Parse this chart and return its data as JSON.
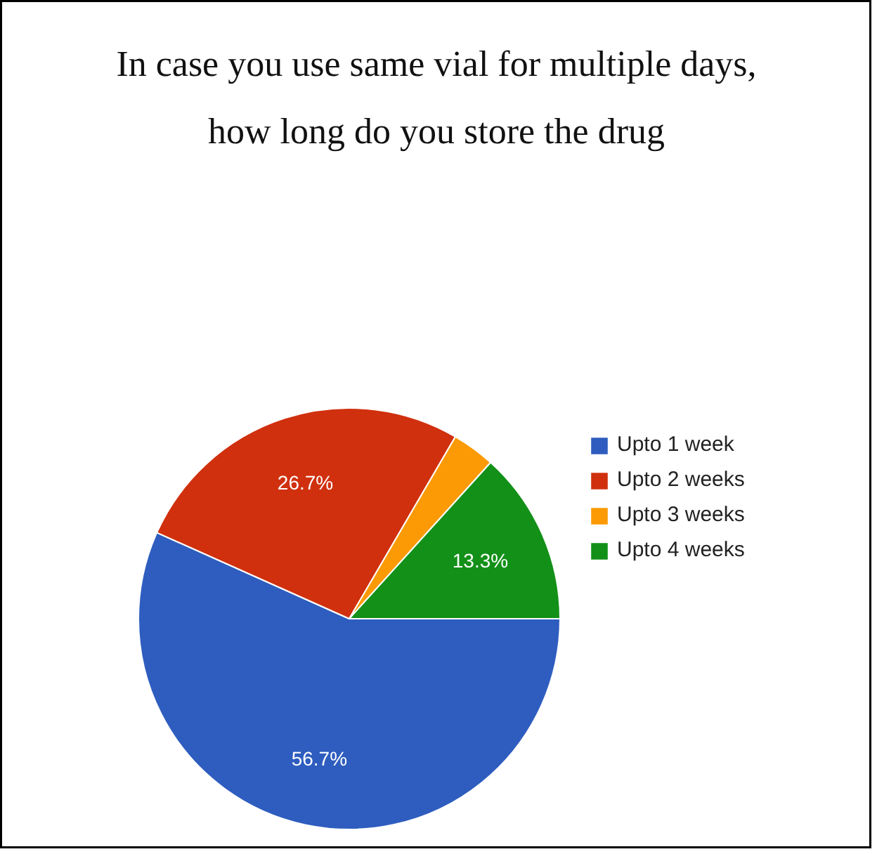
{
  "chart_data": {
    "type": "pie",
    "title": "In case you use same vial for multiple days, how long do you store the drug",
    "categories": [
      "Upto 1 week",
      "Upto 2 weeks",
      "Upto 3 weeks",
      "Upto 4 weeks"
    ],
    "values": [
      56.7,
      26.7,
      3.3,
      13.3
    ],
    "colors": [
      "#2e5dbf",
      "#d0300e",
      "#fb9a05",
      "#139018"
    ],
    "value_labels": [
      "56.7%",
      "26.7%",
      null,
      "13.3%"
    ],
    "legend": "right"
  }
}
